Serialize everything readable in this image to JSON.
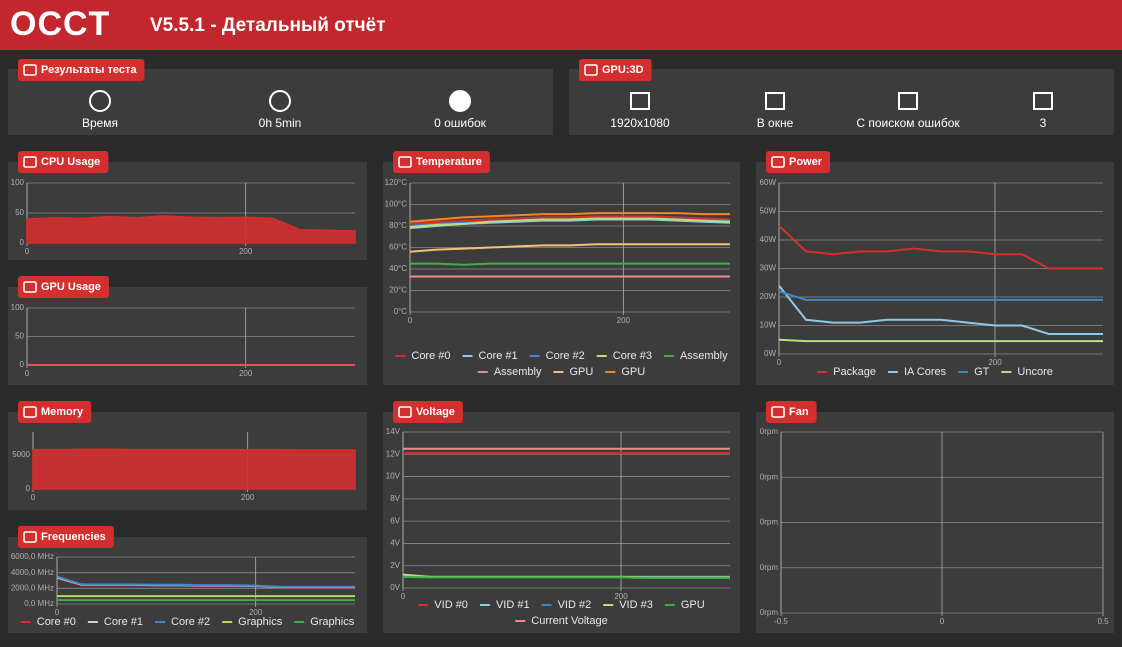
{
  "header": {
    "logo": "OCCT",
    "title": "V5.5.1 - Детальный отчёт"
  },
  "test_results": {
    "label": "Результаты теста",
    "items": [
      "Время",
      "0h 5min",
      "0 ошибок"
    ]
  },
  "gpu_test": {
    "label": "GPU:3D",
    "items": [
      "1920x1080",
      "В окне",
      "С поиском ошибок",
      "3"
    ]
  },
  "panels": [
    {
      "title": "CPU Usage",
      "type": "area",
      "x": [
        0,
        25,
        50,
        75,
        100,
        125,
        150,
        175,
        200,
        225,
        250,
        275,
        300
      ],
      "xlim": [
        0,
        300
      ],
      "xticks": [
        0,
        200
      ],
      "ylim": [
        0,
        100
      ],
      "yticks": [
        0,
        50,
        100
      ],
      "series": [
        {
          "color": "#d32f2f",
          "values": [
            40,
            42,
            41,
            44,
            42,
            45,
            43,
            42,
            43,
            41,
            22,
            21,
            20
          ]
        }
      ]
    },
    {
      "title": "GPU Usage",
      "type": "line",
      "x": [
        0,
        25,
        50,
        75,
        100,
        125,
        150,
        175,
        200,
        225,
        250,
        275,
        300
      ],
      "xlim": [
        0,
        300
      ],
      "xticks": [
        0,
        200
      ],
      "ylim": [
        0,
        100
      ],
      "yticks": [
        0,
        50,
        100
      ],
      "series": [
        {
          "color": "#e05555",
          "values": [
            0,
            0,
            0,
            0,
            0,
            0,
            0,
            0,
            0,
            0,
            0,
            0,
            0
          ]
        }
      ]
    },
    {
      "title": "Memory",
      "type": "area",
      "x": [
        0,
        25,
        50,
        75,
        100,
        125,
        150,
        175,
        200,
        225,
        250,
        275,
        300
      ],
      "xlim": [
        0,
        300
      ],
      "xticks": [
        0,
        200
      ],
      "ylim": [
        0,
        8400
      ],
      "yticks": [
        0,
        5000
      ],
      "series": [
        {
          "color": "#d32f2f",
          "values": [
            5800,
            5800,
            5850,
            5850,
            5800,
            5800,
            5800,
            5800,
            5800,
            5800,
            5750,
            5750,
            5750
          ]
        }
      ]
    },
    {
      "title": "Frequencies",
      "type": "line",
      "x": [
        0,
        25,
        50,
        75,
        100,
        125,
        150,
        175,
        200,
        225,
        250,
        275,
        300
      ],
      "xlim": [
        0,
        300
      ],
      "xticks": [
        0,
        200
      ],
      "ylim": [
        0,
        6000
      ],
      "yticks": [
        {
          "value": 0,
          "label": "0,0 MHz"
        },
        {
          "value": 2000,
          "label": "2000,0 MHz"
        },
        {
          "value": 4000,
          "label": "4000,0 MHz"
        },
        {
          "value": 6000,
          "label": "6000,0 MHz"
        }
      ],
      "series": [
        {
          "name": "Core #0",
          "color": "#d32f2f",
          "values": [
            3300,
            2400,
            2400,
            2400,
            2400,
            2400,
            2300,
            2300,
            2300,
            2100,
            2100,
            2100,
            2100
          ]
        },
        {
          "name": "Core #1",
          "color": "#d0d0d0",
          "values": [
            3400,
            2450,
            2450,
            2450,
            2400,
            2400,
            2350,
            2350,
            2300,
            2150,
            2150,
            2150,
            2150
          ]
        },
        {
          "name": "Core #2",
          "color": "#3f87c9",
          "values": [
            3500,
            2500,
            2500,
            2500,
            2450,
            2450,
            2400,
            2400,
            2350,
            2200,
            2200,
            2200,
            2200
          ]
        },
        {
          "name": "Graphics",
          "color": "#b7d65a",
          "values": [
            1000,
            1000,
            1000,
            1000,
            1000,
            1000,
            1000,
            1000,
            1000,
            1000,
            1000,
            1000,
            1000
          ]
        },
        {
          "name": "Graphics",
          "color": "#3fae49",
          "values": [
            500,
            500,
            500,
            500,
            500,
            500,
            500,
            500,
            500,
            500,
            500,
            500,
            500
          ]
        }
      ]
    },
    {
      "title": "Temperature",
      "type": "line",
      "x": [
        0,
        25,
        50,
        75,
        100,
        125,
        150,
        175,
        200,
        225,
        250,
        275,
        300
      ],
      "xlim": [
        0,
        300
      ],
      "xticks": [
        0,
        200
      ],
      "ylim": [
        0,
        120
      ],
      "yticks": [
        {
          "value": 0,
          "label": "0°C"
        },
        {
          "value": 20,
          "label": "20°C"
        },
        {
          "value": 40,
          "label": "40°C"
        },
        {
          "value": 60,
          "label": "60°C"
        },
        {
          "value": 80,
          "label": "80°C"
        },
        {
          "value": 100,
          "label": "100°C"
        },
        {
          "value": 120,
          "label": "120°C"
        }
      ],
      "series": [
        {
          "name": "Core #0",
          "color": "#d32f2f",
          "values": [
            82,
            84,
            85,
            86,
            87,
            88,
            88,
            89,
            89,
            89,
            88,
            87,
            86
          ]
        },
        {
          "name": "Core #1",
          "color": "#8fc8e8",
          "values": [
            78,
            80,
            82,
            83,
            84,
            85,
            85,
            86,
            86,
            86,
            85,
            84,
            83
          ]
        },
        {
          "name": "Core #2",
          "color": "#3f87c9",
          "values": [
            80,
            82,
            83,
            84,
            85,
            86,
            86,
            87,
            87,
            87,
            86,
            85,
            85
          ]
        },
        {
          "name": "Core #3",
          "color": "#b7e07a",
          "values": [
            79,
            81,
            82,
            84,
            85,
            86,
            86,
            87,
            87,
            87,
            86,
            85,
            84
          ]
        },
        {
          "name": "Assembly",
          "color": "#3fae49",
          "values": [
            45,
            45,
            44,
            45,
            45,
            45,
            45,
            45,
            45,
            45,
            45,
            45,
            45
          ]
        },
        {
          "name": "Assembly",
          "color": "#f08c8c",
          "values": [
            33,
            33,
            33,
            33,
            33,
            33,
            33,
            33,
            33,
            33,
            33,
            33,
            33
          ]
        },
        {
          "name": "GPU",
          "color": "#f5c07a",
          "values": [
            56,
            58,
            59,
            60,
            61,
            62,
            62,
            63,
            63,
            63,
            63,
            63,
            63
          ]
        },
        {
          "name": "GPU",
          "color": "#ef8a1f",
          "values": [
            84,
            86,
            88,
            89,
            90,
            91,
            91,
            92,
            92,
            92,
            92,
            91,
            91
          ]
        }
      ]
    },
    {
      "title": "Voltage",
      "type": "line",
      "x": [
        0,
        25,
        50,
        75,
        100,
        125,
        150,
        175,
        200,
        225,
        250,
        275,
        300
      ],
      "xlim": [
        0,
        300
      ],
      "xticks": [
        0,
        200
      ],
      "ylim": [
        0,
        14
      ],
      "yticks": [
        {
          "value": 0,
          "label": "0V"
        },
        {
          "value": 2,
          "label": "2V"
        },
        {
          "value": 4,
          "label": "4V"
        },
        {
          "value": 6,
          "label": "6V"
        },
        {
          "value": 8,
          "label": "8V"
        },
        {
          "value": 10,
          "label": "10V"
        },
        {
          "value": 12,
          "label": "12V"
        },
        {
          "value": 14,
          "label": "14V"
        }
      ],
      "series": [
        {
          "name": "VID #0",
          "color": "#d32f2f",
          "values": [
            12.1,
            12.1,
            12.1,
            12.1,
            12.1,
            12.1,
            12.1,
            12.1,
            12.1,
            12.1,
            12.1,
            12.1,
            12.1
          ]
        },
        {
          "name": "VID #1",
          "color": "#8fc8e8",
          "values": [
            1.1,
            1,
            1,
            1,
            1,
            1,
            1,
            1,
            1,
            1,
            1,
            1,
            1
          ]
        },
        {
          "name": "VID #2",
          "color": "#3f87c9",
          "values": [
            1.1,
            1,
            1,
            1,
            1,
            1,
            1,
            1,
            1,
            1,
            1,
            1,
            1
          ]
        },
        {
          "name": "VID #3",
          "color": "#b7e07a",
          "values": [
            1.2,
            1,
            1,
            1,
            1,
            1,
            1,
            1,
            1,
            0.95,
            0.95,
            0.95,
            0.95
          ]
        },
        {
          "name": "GPU",
          "color": "#3fae49",
          "values": [
            1,
            0.95,
            0.95,
            0.95,
            0.95,
            0.95,
            0.95,
            0.95,
            0.95,
            0.9,
            0.9,
            0.9,
            0.9
          ]
        },
        {
          "name": "Current Voltage",
          "color": "#f08c8c",
          "values": [
            12.5,
            12.5,
            12.5,
            12.5,
            12.5,
            12.5,
            12.5,
            12.5,
            12.5,
            12.5,
            12.5,
            12.5,
            12.5
          ]
        }
      ]
    },
    {
      "title": "Power",
      "type": "line",
      "x": [
        0,
        25,
        50,
        75,
        100,
        125,
        150,
        175,
        200,
        225,
        250,
        275,
        300
      ],
      "xlim": [
        0,
        300
      ],
      "xticks": [
        0,
        200
      ],
      "ylim": [
        0,
        60
      ],
      "yticks": [
        {
          "value": 0,
          "label": "0W"
        },
        {
          "value": 10,
          "label": "10W"
        },
        {
          "value": 20,
          "label": "20W"
        },
        {
          "value": 30,
          "label": "30W"
        },
        {
          "value": 40,
          "label": "40W"
        },
        {
          "value": 50,
          "label": "50W"
        },
        {
          "value": 60,
          "label": "60W"
        }
      ],
      "series": [
        {
          "name": "Package",
          "color": "#d32f2f",
          "values": [
            45,
            36,
            35,
            36,
            36,
            37,
            36,
            36,
            35,
            35,
            30,
            30,
            30
          ]
        },
        {
          "name": "IA Cores",
          "color": "#8fc8e8",
          "values": [
            24,
            12,
            11,
            11,
            12,
            12,
            12,
            11,
            10,
            10,
            7,
            7,
            7
          ]
        },
        {
          "name": "GT",
          "color": "#3f87c9",
          "values": [
            22,
            19,
            19,
            19,
            19,
            19,
            19,
            19,
            19,
            19,
            19,
            19,
            19
          ]
        },
        {
          "name": "Uncore",
          "color": "#b7e07a",
          "values": [
            5,
            4.5,
            4.5,
            4.5,
            4.5,
            4.5,
            4.5,
            4.5,
            4.5,
            4.5,
            4.5,
            4.5,
            4.5
          ]
        }
      ]
    },
    {
      "title": "Fan",
      "type": "line",
      "x": [],
      "xlim": [
        -0.5,
        0.5
      ],
      "xticks": [
        -0.5,
        0,
        0.5
      ],
      "ylim": [
        0,
        1
      ],
      "yticks": [
        {
          "value": 0,
          "label": "0rpm"
        },
        {
          "value": 0.25,
          "label": "0rpm"
        },
        {
          "value": 0.5,
          "label": "0rpm"
        },
        {
          "value": 0.75,
          "label": "0rpm"
        },
        {
          "value": 1,
          "label": "0rpm"
        }
      ],
      "series": []
    }
  ]
}
